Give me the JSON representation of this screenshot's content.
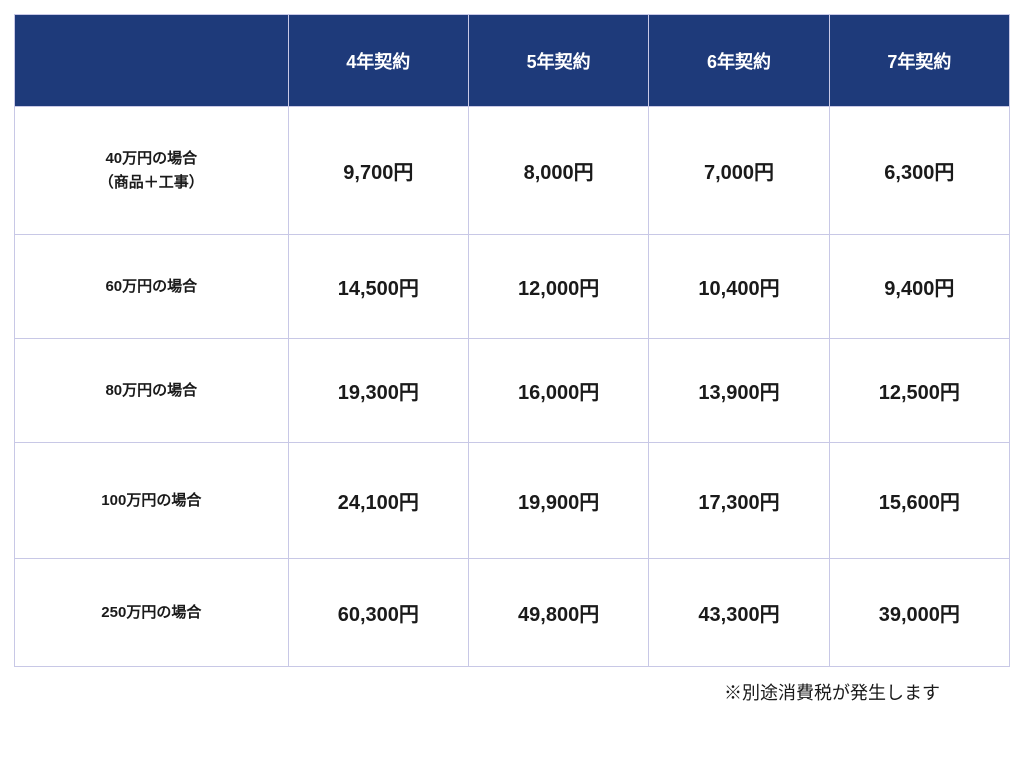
{
  "table": {
    "type": "table",
    "header": {
      "label": "",
      "columns": [
        "4年契約",
        "5年契約",
        "6年契約",
        "7年契約"
      ]
    },
    "rows": [
      {
        "label": "40万円の場合\n（商品＋工事）",
        "values": [
          "9,700円",
          "8,000円",
          "7,000円",
          "6,300円"
        ]
      },
      {
        "label": "60万円の場合",
        "values": [
          "14,500円",
          "12,000円",
          "10,400円",
          "9,400円"
        ]
      },
      {
        "label": "80万円の場合",
        "values": [
          "19,300円",
          "16,000円",
          "13,900円",
          "12,500円"
        ]
      },
      {
        "label": "100万円の場合",
        "values": [
          "24,100円",
          "19,900円",
          "17,300円",
          "15,600円"
        ]
      },
      {
        "label": "250万円の場合",
        "values": [
          "60,300円",
          "49,800円",
          "43,300円",
          "39,000円"
        ]
      }
    ],
    "styling": {
      "header_bg": "#1e3a7a",
      "header_text_color": "#ffffff",
      "border_color": "#c8c8e6",
      "body_bg": "#ffffff",
      "body_text_color": "#1a1a1a",
      "header_fontsize": 18,
      "label_fontsize": 15,
      "data_fontsize": 20,
      "font_weight": "bold",
      "label_col_width_pct": 27.5,
      "data_col_width_pct": 18.125
    }
  },
  "footnote": "※別途消費税が発生します"
}
